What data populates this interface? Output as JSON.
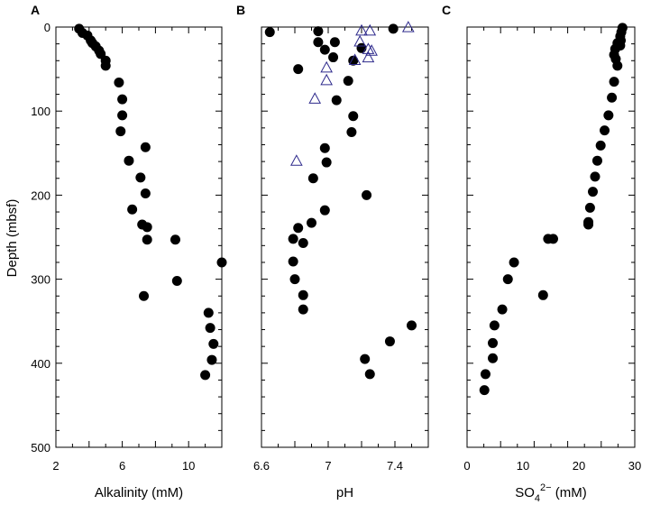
{
  "y_axis": {
    "label": "Depth (mbsf)",
    "ticks": [
      "0",
      "100",
      "200",
      "300",
      "400",
      "500"
    ]
  },
  "chart_data": [
    {
      "type": "scatter",
      "panel_label": "A",
      "xlabel": "Alkalinity  (mM)",
      "xlim": [
        2,
        12
      ],
      "ylim": [
        0,
        500
      ],
      "y_reversed": true,
      "x_ticks": [
        "2",
        "6",
        "10"
      ],
      "x_tick_values": [
        2,
        6,
        10
      ],
      "series": [
        {
          "marker": "filled-circle",
          "color": "#000000",
          "points": [
            [
              3.4,
              2
            ],
            [
              3.6,
              7
            ],
            [
              3.9,
              10
            ],
            [
              4.1,
              16
            ],
            [
              4.2,
              19
            ],
            [
              4.4,
              23
            ],
            [
              4.6,
              28
            ],
            [
              4.7,
              32
            ],
            [
              5.0,
              40
            ],
            [
              5.0,
              46
            ],
            [
              5.8,
              66
            ],
            [
              6.0,
              86
            ],
            [
              6.0,
              105
            ],
            [
              5.9,
              124
            ],
            [
              7.4,
              143
            ],
            [
              6.4,
              159
            ],
            [
              7.1,
              179
            ],
            [
              7.4,
              198
            ],
            [
              6.6,
              217
            ],
            [
              7.2,
              235
            ],
            [
              7.5,
              238
            ],
            [
              7.5,
              253
            ],
            [
              9.2,
              253
            ],
            [
              12.0,
              280
            ],
            [
              9.3,
              302
            ],
            [
              7.3,
              320
            ],
            [
              11.2,
              340
            ],
            [
              11.3,
              358
            ],
            [
              11.5,
              377
            ],
            [
              11.4,
              396
            ],
            [
              11.0,
              414
            ]
          ]
        }
      ]
    },
    {
      "type": "scatter",
      "panel_label": "B",
      "xlabel": "pH",
      "xlim": [
        6.6,
        7.6
      ],
      "ylim": [
        0,
        500
      ],
      "y_reversed": true,
      "x_ticks": [
        "6.6",
        "7",
        "7.4"
      ],
      "x_tick_values": [
        6.6,
        7.0,
        7.4
      ],
      "series": [
        {
          "marker": "filled-circle",
          "color": "#000000",
          "points": [
            [
              6.65,
              6
            ],
            [
              6.94,
              5
            ],
            [
              7.39,
              2
            ],
            [
              6.94,
              18
            ],
            [
              7.04,
              18
            ],
            [
              6.98,
              27
            ],
            [
              7.2,
              25
            ],
            [
              7.03,
              36
            ],
            [
              7.15,
              40
            ],
            [
              6.82,
              50
            ],
            [
              7.12,
              64
            ],
            [
              7.05,
              87
            ],
            [
              7.15,
              106
            ],
            [
              7.14,
              125
            ],
            [
              6.98,
              144
            ],
            [
              6.99,
              161
            ],
            [
              6.91,
              180
            ],
            [
              7.23,
              200
            ],
            [
              6.98,
              218
            ],
            [
              6.9,
              233
            ],
            [
              6.82,
              239
            ],
            [
              6.79,
              252
            ],
            [
              6.85,
              257
            ],
            [
              6.79,
              279
            ],
            [
              6.8,
              300
            ],
            [
              6.85,
              319
            ],
            [
              6.85,
              336
            ],
            [
              7.5,
              355
            ],
            [
              7.37,
              374
            ],
            [
              7.22,
              395
            ],
            [
              7.25,
              413
            ]
          ]
        },
        {
          "marker": "open-triangle",
          "color": "#2e2a8c",
          "points": [
            [
              7.48,
              1
            ],
            [
              7.25,
              5
            ],
            [
              7.2,
              5
            ],
            [
              7.19,
              18
            ],
            [
              7.24,
              27
            ],
            [
              7.26,
              29
            ],
            [
              7.24,
              37
            ],
            [
              7.16,
              40
            ],
            [
              6.99,
              49
            ],
            [
              6.99,
              64
            ],
            [
              6.92,
              86
            ],
            [
              6.81,
              160
            ]
          ]
        }
      ]
    },
    {
      "type": "scatter",
      "panel_label": "C",
      "xlabel": "SO",
      "xlabel_sub": "4",
      "xlabel_sup": "2−",
      "xlabel_unit": " (mM)",
      "xlim": [
        0,
        30
      ],
      "ylim": [
        0,
        500
      ],
      "y_reversed": true,
      "x_ticks": [
        "0",
        "10",
        "20",
        "30"
      ],
      "x_tick_values": [
        0,
        10,
        20,
        30
      ],
      "series": [
        {
          "marker": "filled-circle",
          "color": "#000000",
          "points": [
            [
              27.8,
              1
            ],
            [
              27.6,
              6
            ],
            [
              27.4,
              11
            ],
            [
              27.5,
              16
            ],
            [
              27.4,
              22
            ],
            [
              26.9,
              19
            ],
            [
              26.5,
              26
            ],
            [
              26.3,
              33
            ],
            [
              26.6,
              38
            ],
            [
              26.9,
              46
            ],
            [
              26.3,
              65
            ],
            [
              25.9,
              84
            ],
            [
              25.3,
              105
            ],
            [
              24.6,
              123
            ],
            [
              23.9,
              141
            ],
            [
              23.3,
              159
            ],
            [
              22.9,
              178
            ],
            [
              22.5,
              196
            ],
            [
              22.0,
              215
            ],
            [
              21.7,
              232
            ],
            [
              21.7,
              235
            ],
            [
              14.5,
              252
            ],
            [
              15.4,
              252
            ],
            [
              8.4,
              280
            ],
            [
              7.3,
              300
            ],
            [
              13.6,
              319
            ],
            [
              6.3,
              336
            ],
            [
              4.9,
              355
            ],
            [
              4.6,
              376
            ],
            [
              4.6,
              394
            ],
            [
              3.3,
              413
            ],
            [
              3.1,
              432
            ]
          ]
        }
      ]
    }
  ]
}
